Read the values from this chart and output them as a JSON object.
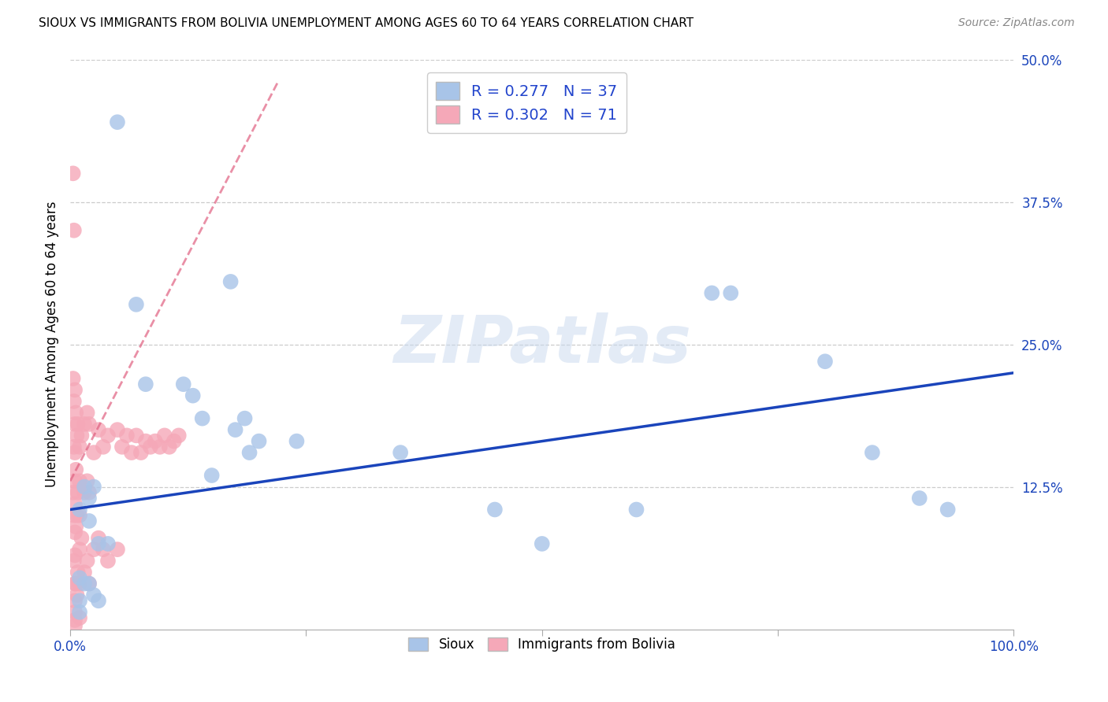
{
  "title": "SIOUX VS IMMIGRANTS FROM BOLIVIA UNEMPLOYMENT AMONG AGES 60 TO 64 YEARS CORRELATION CHART",
  "source": "Source: ZipAtlas.com",
  "ylabel": "Unemployment Among Ages 60 to 64 years",
  "xlim": [
    0.0,
    1.0
  ],
  "ylim": [
    0.0,
    0.5
  ],
  "xticks": [
    0.0,
    0.25,
    0.5,
    0.75,
    1.0
  ],
  "xticklabels": [
    "0.0%",
    "",
    "",
    "",
    "100.0%"
  ],
  "yticks": [
    0.0,
    0.125,
    0.25,
    0.375,
    0.5
  ],
  "yticklabels": [
    "",
    "12.5%",
    "25.0%",
    "37.5%",
    "50.0%"
  ],
  "sioux_color": "#a8c4e8",
  "bolivia_color": "#f5a8b8",
  "sioux_line_color": "#1a44bb",
  "bolivia_line_color": "#e06080",
  "sioux_R": 0.277,
  "sioux_N": 37,
  "bolivia_R": 0.302,
  "bolivia_N": 71,
  "legend_r_color": "#2244cc",
  "sioux_x": [
    0.05,
    0.17,
    0.07,
    0.08,
    0.12,
    0.13,
    0.14,
    0.15,
    0.025,
    0.015,
    0.02,
    0.01,
    0.02,
    0.03,
    0.04,
    0.01,
    0.015,
    0.02,
    0.025,
    0.03,
    0.175,
    0.185,
    0.19,
    0.2,
    0.24,
    0.35,
    0.45,
    0.5,
    0.6,
    0.68,
    0.7,
    0.8,
    0.85,
    0.9,
    0.93,
    0.01,
    0.01
  ],
  "sioux_y": [
    0.445,
    0.305,
    0.285,
    0.215,
    0.215,
    0.205,
    0.185,
    0.135,
    0.125,
    0.125,
    0.115,
    0.105,
    0.095,
    0.075,
    0.075,
    0.045,
    0.04,
    0.04,
    0.03,
    0.025,
    0.175,
    0.185,
    0.155,
    0.165,
    0.165,
    0.155,
    0.105,
    0.075,
    0.105,
    0.295,
    0.295,
    0.235,
    0.155,
    0.115,
    0.105,
    0.025,
    0.015
  ],
  "bolivia_x": [
    0.003,
    0.003,
    0.003,
    0.004,
    0.004,
    0.004,
    0.004,
    0.004,
    0.005,
    0.005,
    0.005,
    0.005,
    0.005,
    0.005,
    0.005,
    0.005,
    0.005,
    0.005,
    0.005,
    0.005,
    0.006,
    0.006,
    0.006,
    0.006,
    0.007,
    0.007,
    0.007,
    0.008,
    0.008,
    0.008,
    0.01,
    0.01,
    0.01,
    0.01,
    0.01,
    0.01,
    0.012,
    0.012,
    0.015,
    0.015,
    0.015,
    0.018,
    0.018,
    0.018,
    0.02,
    0.02,
    0.02,
    0.025,
    0.025,
    0.03,
    0.03,
    0.035,
    0.035,
    0.04,
    0.04,
    0.05,
    0.05,
    0.055,
    0.06,
    0.065,
    0.07,
    0.075,
    0.08,
    0.085,
    0.09,
    0.095,
    0.1,
    0.105,
    0.11,
    0.115
  ],
  "bolivia_y": [
    0.4,
    0.22,
    0.12,
    0.35,
    0.2,
    0.16,
    0.1,
    0.06,
    0.21,
    0.18,
    0.155,
    0.13,
    0.11,
    0.085,
    0.065,
    0.04,
    0.025,
    0.015,
    0.008,
    0.003,
    0.19,
    0.14,
    0.09,
    0.04,
    0.17,
    0.1,
    0.03,
    0.18,
    0.12,
    0.05,
    0.16,
    0.13,
    0.1,
    0.07,
    0.04,
    0.01,
    0.17,
    0.08,
    0.18,
    0.12,
    0.05,
    0.19,
    0.13,
    0.06,
    0.18,
    0.12,
    0.04,
    0.155,
    0.07,
    0.175,
    0.08,
    0.16,
    0.07,
    0.17,
    0.06,
    0.175,
    0.07,
    0.16,
    0.17,
    0.155,
    0.17,
    0.155,
    0.165,
    0.16,
    0.165,
    0.16,
    0.17,
    0.16,
    0.165,
    0.17
  ],
  "sioux_line_x0": 0.0,
  "sioux_line_y0": 0.105,
  "sioux_line_x1": 1.0,
  "sioux_line_y1": 0.225,
  "bolivia_line_x0": 0.0,
  "bolivia_line_y0": 0.13,
  "bolivia_line_x1": 0.22,
  "bolivia_line_y1": 0.48,
  "watermark_text": "ZIPatlas",
  "background_color": "#ffffff",
  "grid_color": "#cccccc"
}
